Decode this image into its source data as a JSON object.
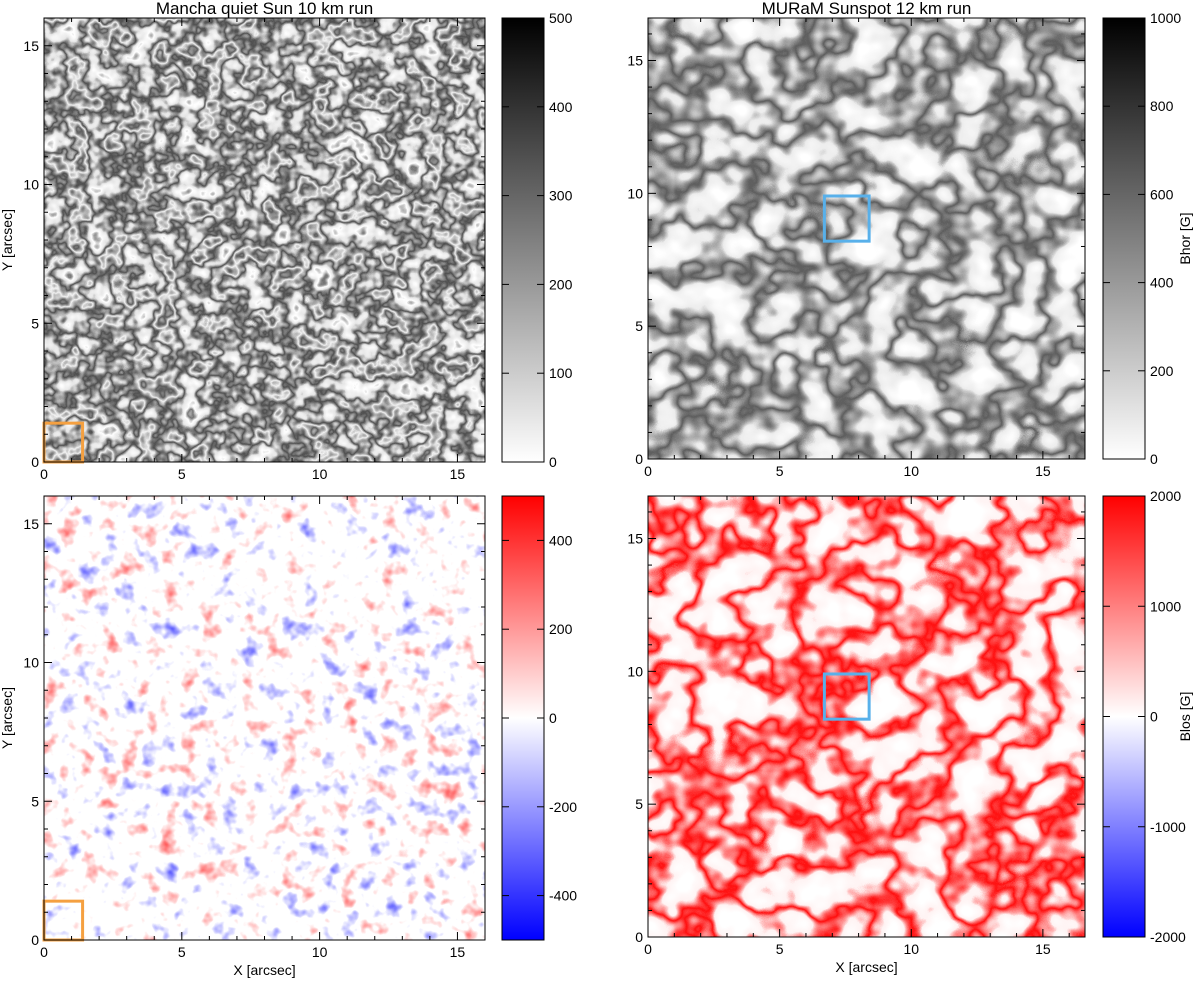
{
  "chart_data": [
    {
      "type": "heatmap",
      "title": "Mancha quiet Sun 10 km run",
      "xlabel": "",
      "ylabel": "Y [arcsec]",
      "xlim": [
        0,
        16
      ],
      "ylim": [
        0,
        16
      ],
      "x_ticks": [
        0,
        5,
        10,
        15
      ],
      "y_ticks": [
        0,
        5,
        10,
        15
      ],
      "colorbar": {
        "label": "",
        "range": [
          0,
          500
        ],
        "ticks": [
          0,
          100,
          200,
          300,
          400,
          500
        ],
        "colormap": "gray_reversed",
        "colors": [
          "#ffffff",
          "#000000"
        ]
      },
      "highlight_box": {
        "x": [
          0,
          1.4
        ],
        "y": [
          0,
          1.4
        ],
        "color": "#f5a040"
      }
    },
    {
      "type": "heatmap",
      "title": "MURaM Sunspot 12 km run",
      "xlabel": "",
      "ylabel": "",
      "xlim": [
        0,
        16.6
      ],
      "ylim": [
        0,
        16.6
      ],
      "x_ticks": [
        0,
        5,
        10,
        15
      ],
      "y_ticks": [
        0,
        5,
        10,
        15
      ],
      "colorbar": {
        "label": "Bhor [G]",
        "range": [
          0,
          1000
        ],
        "ticks": [
          0,
          200,
          400,
          600,
          800,
          1000
        ],
        "colormap": "gray_reversed",
        "colors": [
          "#ffffff",
          "#000000"
        ]
      },
      "highlight_box": {
        "x": [
          6.7,
          8.4
        ],
        "y": [
          8.2,
          9.9
        ],
        "color": "#58b0ea"
      }
    },
    {
      "type": "heatmap",
      "title": "",
      "xlabel": "X [arcsec]",
      "ylabel": "Y [arcsec]",
      "xlim": [
        0,
        16
      ],
      "ylim": [
        0,
        16
      ],
      "x_ticks": [
        0,
        5,
        10,
        15
      ],
      "y_ticks": [
        0,
        5,
        10,
        15
      ],
      "colorbar": {
        "label": "",
        "range": [
          -500,
          500
        ],
        "ticks": [
          -400,
          -200,
          0,
          200,
          400
        ],
        "colormap": "blue_white_red",
        "colors": [
          "#0000ff",
          "#ffffff",
          "#ff0000"
        ]
      },
      "highlight_box": {
        "x": [
          0,
          1.4
        ],
        "y": [
          0,
          1.4
        ],
        "color": "#f5a040"
      }
    },
    {
      "type": "heatmap",
      "title": "",
      "xlabel": "X [arcsec]",
      "ylabel": "",
      "xlim": [
        0,
        16.6
      ],
      "ylim": [
        0,
        16.6
      ],
      "x_ticks": [
        0,
        5,
        10,
        15
      ],
      "y_ticks": [
        0,
        5,
        10,
        15
      ],
      "colorbar": {
        "label": "Blos [G]",
        "range": [
          -2000,
          2000
        ],
        "ticks": [
          -2000,
          -1000,
          0,
          1000,
          2000
        ],
        "colormap": "blue_white_red",
        "colors": [
          "#0000ff",
          "#ffffff",
          "#ff0000"
        ]
      },
      "highlight_box": {
        "x": [
          6.7,
          8.4
        ],
        "y": [
          8.2,
          9.9
        ],
        "color": "#58b0ea"
      }
    }
  ]
}
